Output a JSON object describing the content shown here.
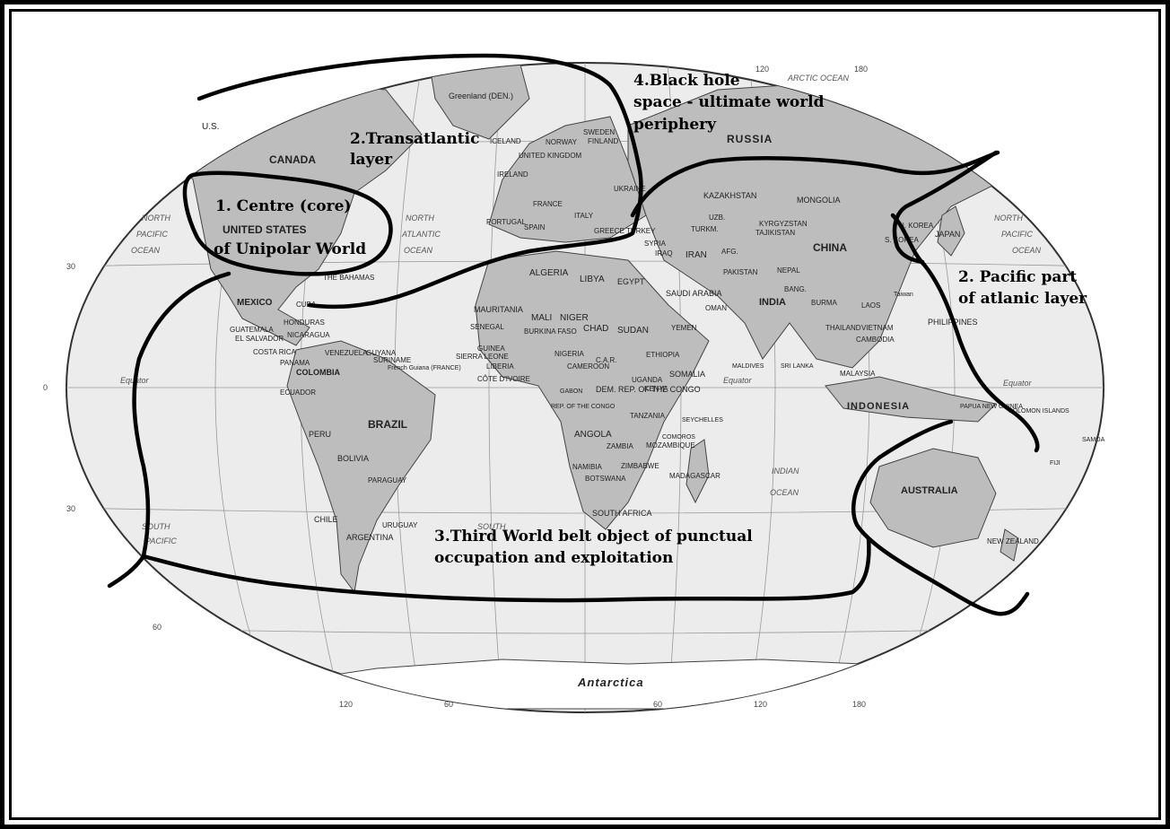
{
  "zones": {
    "core_line1": "1. Centre (core)",
    "core_line2": "of Unipolar World",
    "transatlantic_line1": "2.Transatlantic",
    "transatlantic_line2": "layer",
    "pacific_line1": "2. Pacific part",
    "pacific_line2": "of atlanic layer",
    "third_world_line1": "3.Third World belt object of  punctual",
    "third_world_line2": "occupation and exploitation",
    "blackhole_line1": "4.Black hole",
    "blackhole_line2": "space - ultimate world",
    "blackhole_line3": "periphery"
  },
  "countries": {
    "us_alaska": "U.S.",
    "canada": "CANADA",
    "united_states": "UNITED STATES",
    "mexico": "MEXICO",
    "cuba": "CUBA",
    "bahamas": "THE BAHAMAS",
    "guatemala": "GUATEMALA",
    "el_salvador": "EL SALVADOR",
    "honduras": "HONDURAS",
    "nicaragua": "NICARAGUA",
    "costa_rica": "COSTA RICA",
    "panama": "PANAMA",
    "venezuela": "VENEZUELA",
    "guyana": "GUYANA",
    "suriname": "SURINAME",
    "french_guiana": "French Guiana (FRANCE)",
    "colombia": "COLOMBIA",
    "ecuador": "ECUADOR",
    "peru": "PERU",
    "brazil": "BRAZIL",
    "bolivia": "BOLIVIA",
    "paraguay": "PARAGUAY",
    "chile": "CHILE",
    "argentina": "ARGENTINA",
    "uruguay": "URUGUAY",
    "greenland": "Greenland (DEN.)",
    "iceland": "ICELAND",
    "norway": "NORWAY",
    "sweden": "SWEDEN",
    "finland": "FINLAND",
    "uk": "UNITED KINGDOM",
    "ireland": "IRELAND",
    "france": "FRANCE",
    "spain": "SPAIN",
    "portugal": "PORTUGAL",
    "italy": "ITALY",
    "greece": "GREECE",
    "turkey": "TURKEY",
    "ukraine": "UKRAINE",
    "russia": "RUSSIA",
    "kazakhstan": "KAZAKHSTAN",
    "mongolia": "MONGOLIA",
    "china": "CHINA",
    "kyrgyzstan": "KYRGYZSTAN",
    "tajikistan": "TAJIKISTAN",
    "turkmen": "TURKM.",
    "uzbek": "UZB.",
    "afghanistan": "AFG.",
    "iran": "IRAN",
    "iraq": "IRAQ",
    "syria": "SYRIA",
    "saudi_arabia": "SAUDI ARABIA",
    "yemen": "YEMEN",
    "oman": "OMAN",
    "pakistan": "PAKISTAN",
    "india": "INDIA",
    "nepal": "NEPAL",
    "bangladesh": "BANG.",
    "burma": "BURMA",
    "thailand": "THAILAND",
    "laos": "LAOS",
    "vietnam": "VIETNAM",
    "cambodia": "CAMBODIA",
    "malaysia": "MALAYSIA",
    "sri_lanka": "SRI LANKA",
    "maldives": "MALDIVES",
    "philippines": "PHILIPPINES",
    "indonesia": "INDONESIA",
    "korea_n": "N. KOREA",
    "korea_s": "S. KOREA",
    "japan": "JAPAN",
    "taiwan": "Taiwan",
    "papua": "PAPUA NEW GUINEA",
    "solomon": "SOLOMON ISLANDS",
    "australia": "AUSTRALIA",
    "new_zealand": "NEW ZEALAND",
    "fiji": "FIJI",
    "samoa": "SAMOA",
    "algeria": "ALGERIA",
    "libya": "LIBYA",
    "egypt": "EGYPT",
    "mauritania": "MAURITANIA",
    "mali": "MALI",
    "niger": "NIGER",
    "chad": "CHAD",
    "sudan": "SUDAN",
    "senegal": "SENEGAL",
    "guinea": "GUINEA",
    "sierra_leone": "SIERRA LEONE",
    "liberia": "LIBERIA",
    "cote_divoire": "CÔTE D'IVOIRE",
    "burkina": "BURKINA FASO",
    "nigeria": "NIGERIA",
    "cameroon": "CAMEROON",
    "car": "C.A.R.",
    "ethiopia": "ETHIOPIA",
    "somalia": "SOMALIA",
    "kenya": "KENYA",
    "uganda": "UGANDA",
    "dem_rep_congo": "DEM. REP. OF THE CONGO",
    "rep_congo": "REP. OF THE CONGO",
    "gabon": "GABON",
    "tanzania": "TANZANIA",
    "angola": "ANGOLA",
    "zambia": "ZAMBIA",
    "mozambique": "MOZAMBIQUE",
    "zimbabwe": "ZIMBABWE",
    "namibia": "NAMIBIA",
    "botswana": "BOTSWANA",
    "south_africa": "SOUTH AFRICA",
    "madagascar": "MADAGASCAR",
    "seychelles": "SEYCHELLES",
    "comoros": "COMOROS",
    "antarctica": "Antarctica"
  },
  "oceans": {
    "arctic": "ARCTIC OCEAN",
    "north_pacific_w": "NORTH PACIFIC OCEAN",
    "north_atlantic": "NORTH ATLANTIC OCEAN",
    "north_pacific_e": "NORTH PACIFIC OCEAN",
    "south_pacific": "SOUTH PACIFIC OCEAN",
    "south_atlantic": "SOUTH",
    "indian": "INDIAN OCEAN",
    "equator_w": "Equator",
    "equator_c": "Equator",
    "equator_e": "Equator"
  },
  "ticks": {
    "lat_30": "30",
    "lat_0": "0",
    "lat_m30": "30",
    "lat_m60": "60",
    "lon_120": "120",
    "lon_60": "60",
    "lon_180": "180"
  },
  "colors": {
    "land": "#bdbdbd",
    "ocean": "#ececec",
    "zone_line": "#000000",
    "grid": "#9a9a9a"
  }
}
